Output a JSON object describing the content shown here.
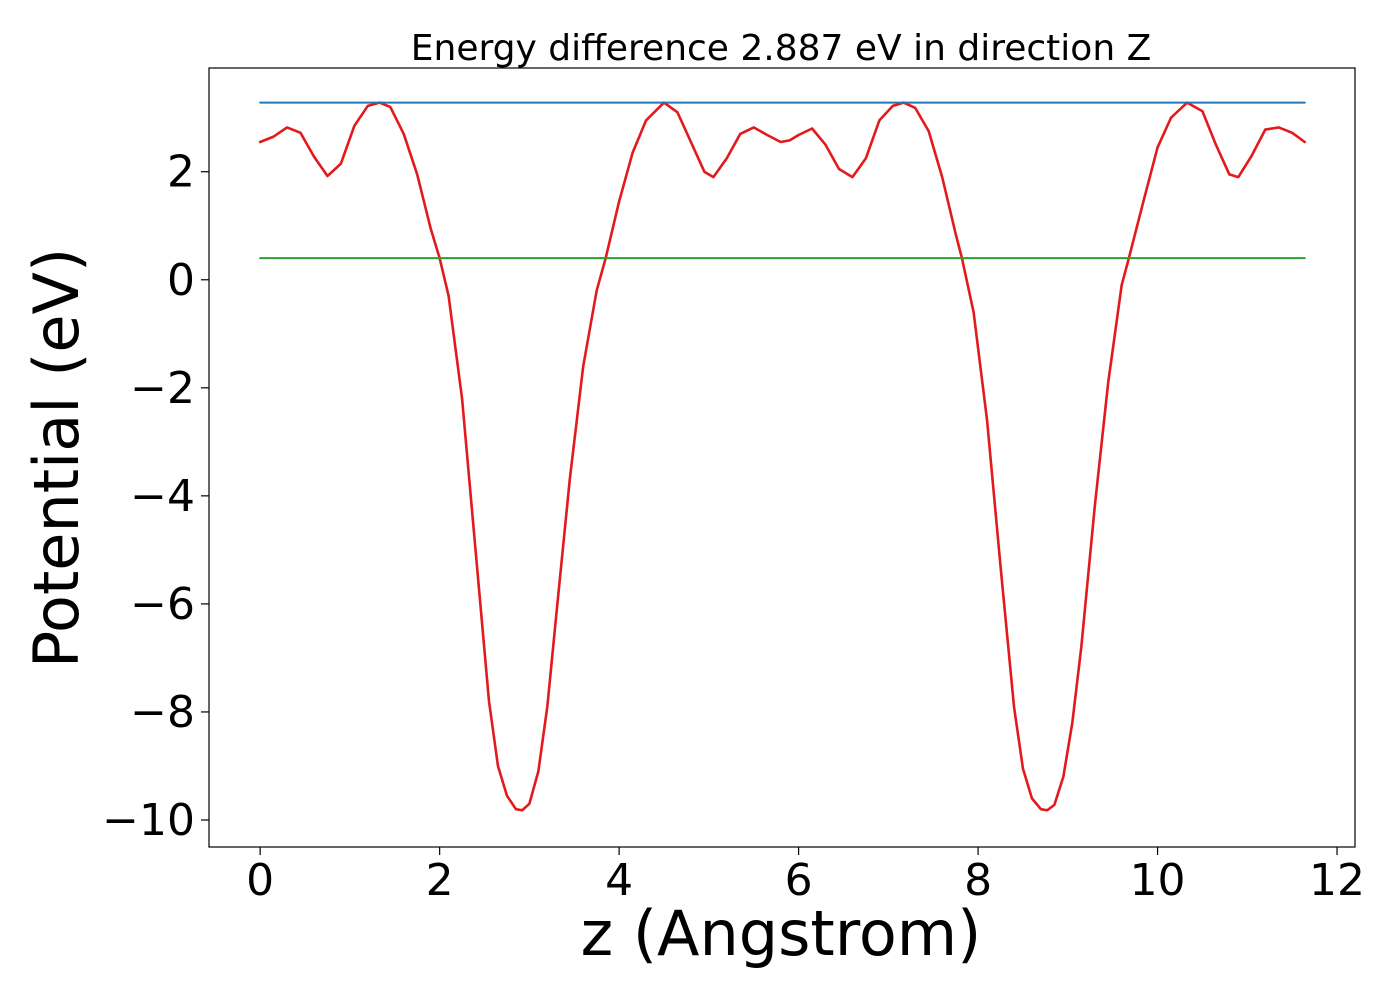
{
  "chart_data": {
    "type": "line",
    "title": "Energy difference 2.887 eV in direction Z",
    "xlabel": "z (Angstrom)",
    "ylabel": "Potential (eV)",
    "xlim": [
      -0.57,
      12.2
    ],
    "ylim": [
      -10.5,
      3.92
    ],
    "xticks": [
      0,
      2,
      4,
      6,
      8,
      10,
      12
    ],
    "xtick_labels": [
      "0",
      "2",
      "4",
      "6",
      "8",
      "10",
      "12"
    ],
    "yticks": [
      2,
      0,
      -2,
      -4,
      -6,
      -8,
      -10
    ],
    "ytick_labels": [
      "2",
      "0",
      "−2",
      "−4",
      "−6",
      "−8",
      "−10"
    ],
    "grid": false,
    "legend": false,
    "series": [
      {
        "color": "#e31a1c",
        "x": [
          0,
          0.15,
          0.3,
          0.45,
          0.6,
          0.75,
          0.9,
          1.05,
          1.2,
          1.33,
          1.45,
          1.6,
          1.75,
          1.9,
          2.0,
          2.1,
          2.25,
          2.4,
          2.55,
          2.65,
          2.75,
          2.85,
          2.92,
          3.0,
          3.1,
          3.2,
          3.3,
          3.45,
          3.6,
          3.75,
          3.85,
          4.0,
          4.15,
          4.3,
          4.5,
          4.65,
          4.8,
          4.95,
          5.05,
          5.2,
          5.35,
          5.5,
          5.65,
          5.8,
          5.9,
          6.0,
          6.15,
          6.3,
          6.45,
          6.6,
          6.75,
          6.9,
          7.05,
          7.17,
          7.3,
          7.45,
          7.6,
          7.75,
          7.82,
          7.95,
          8.1,
          8.25,
          8.4,
          8.5,
          8.6,
          8.7,
          8.77,
          8.85,
          8.95,
          9.05,
          9.15,
          9.3,
          9.45,
          9.6,
          9.68,
          9.85,
          10.0,
          10.15,
          10.33,
          10.5,
          10.65,
          10.8,
          10.9,
          11.05,
          11.2,
          11.35,
          11.5,
          11.64
        ],
        "y": [
          2.55,
          2.65,
          2.82,
          2.72,
          2.28,
          1.92,
          2.15,
          2.85,
          3.22,
          3.28,
          3.2,
          2.7,
          1.95,
          0.95,
          0.4,
          -0.3,
          -2.2,
          -5.0,
          -7.8,
          -9.0,
          -9.55,
          -9.8,
          -9.82,
          -9.7,
          -9.1,
          -7.9,
          -6.2,
          -3.7,
          -1.6,
          -0.2,
          0.4,
          1.45,
          2.35,
          2.95,
          3.28,
          3.1,
          2.55,
          2.0,
          1.9,
          2.25,
          2.7,
          2.82,
          2.68,
          2.55,
          2.58,
          2.68,
          2.8,
          2.5,
          2.05,
          1.9,
          2.25,
          2.95,
          3.22,
          3.28,
          3.18,
          2.75,
          1.9,
          0.85,
          0.4,
          -0.6,
          -2.6,
          -5.3,
          -7.9,
          -9.05,
          -9.6,
          -9.8,
          -9.82,
          -9.72,
          -9.2,
          -8.2,
          -6.8,
          -4.2,
          -1.9,
          -0.1,
          0.4,
          1.5,
          2.45,
          3.0,
          3.28,
          3.12,
          2.5,
          1.95,
          1.9,
          2.3,
          2.78,
          2.82,
          2.72,
          2.55
        ]
      },
      {
        "color": "#1f77b4",
        "x": [
          0,
          11.64
        ],
        "y": [
          3.28,
          3.28
        ]
      },
      {
        "color": "#2ca02c",
        "x": [
          0,
          11.64
        ],
        "y": [
          0.4,
          0.4
        ]
      }
    ]
  }
}
